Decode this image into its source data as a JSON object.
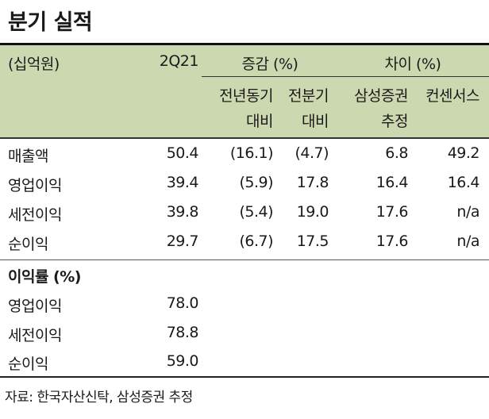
{
  "title": "분기 실적",
  "header": {
    "unit": "(십억원)",
    "quarter": "2Q21",
    "change_group": "증감 (%)",
    "diff_group": "차이 (%)",
    "yoy_line1": "전년동기",
    "yoy_line2": "대비",
    "qoq_line1": "전분기",
    "qoq_line2": "대비",
    "est_line1": "삼성증권",
    "est_line2": "추정",
    "consensus": "컨센서스"
  },
  "rows": [
    {
      "label": "매출액",
      "q": "50.4",
      "yoy": "(16.1)",
      "qoq": "(4.7)",
      "est": "6.8",
      "cons": "49.2"
    },
    {
      "label": "영업이익",
      "q": "39.4",
      "yoy": "(5.9)",
      "qoq": "17.8",
      "est": "16.4",
      "cons": "16.4"
    },
    {
      "label": "세전이익",
      "q": "39.8",
      "yoy": "(5.4)",
      "qoq": "19.0",
      "est": "17.6",
      "cons": "n/a"
    },
    {
      "label": "순이익",
      "q": "29.7",
      "yoy": "(6.7)",
      "qoq": "17.5",
      "est": "17.6",
      "cons": "n/a"
    }
  ],
  "margin_section": {
    "label": "이익률 (%)",
    "rows": [
      {
        "label": "영업이익",
        "q": "78.0"
      },
      {
        "label": "세전이익",
        "q": "78.8"
      },
      {
        "label": "순이익",
        "q": "59.0"
      }
    ]
  },
  "source": "자료: 한국자산신탁, 삼성증권 추정"
}
